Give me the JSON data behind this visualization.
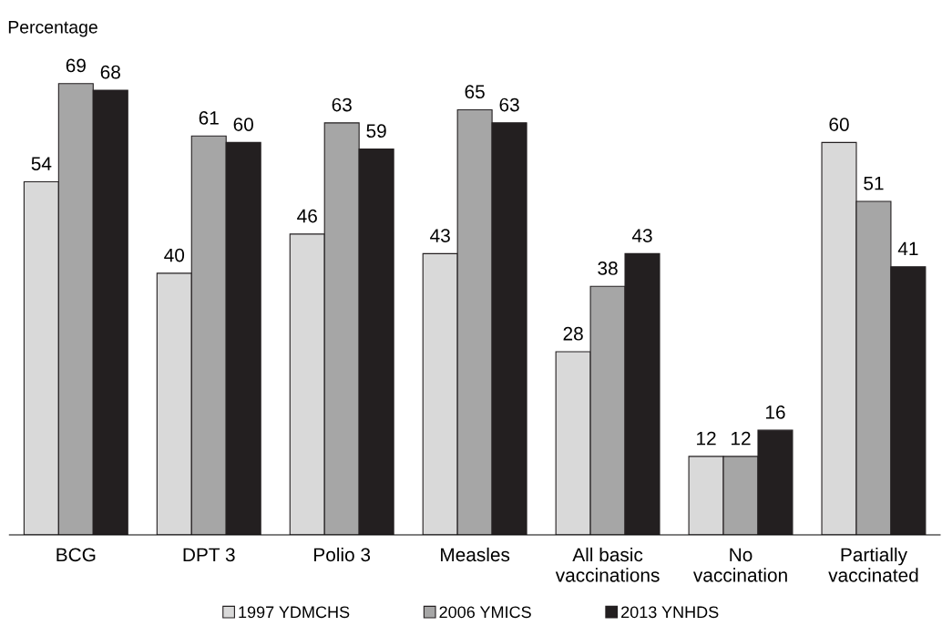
{
  "chart_data": {
    "type": "bar",
    "ylabel": "Percentage",
    "categories": [
      "BCG",
      "DPT 3",
      "Polio 3",
      "Measles",
      "All basic\nvaccinations",
      "No\nvaccination",
      "Partially\nvaccinated"
    ],
    "series": [
      {
        "name": "1997 YDMCHS",
        "color": "#d9d9d9",
        "values": [
          54,
          40,
          46,
          43,
          28,
          12,
          60
        ]
      },
      {
        "name": "2006 YMICS",
        "color": "#a6a6a6",
        "values": [
          69,
          61,
          63,
          65,
          38,
          12,
          51
        ]
      },
      {
        "name": "2013 YNHDS",
        "color": "#231f20",
        "values": [
          68,
          60,
          59,
          63,
          43,
          16,
          41
        ]
      }
    ],
    "data_labels": true,
    "grid": false,
    "legend": "bottom"
  }
}
